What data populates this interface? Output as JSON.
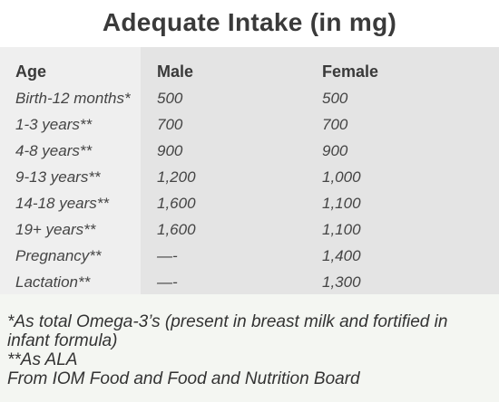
{
  "title": "Adequate Intake (in mg)",
  "table": {
    "headers": {
      "age": "Age",
      "male": "Male",
      "female": "Female"
    },
    "rows": [
      {
        "age": "Birth-12 months*",
        "male": "500",
        "female": "500"
      },
      {
        "age": "1-3 years**",
        "male": "700",
        "female": "700"
      },
      {
        "age": "4-8 years**",
        "male": "900",
        "female": "900"
      },
      {
        "age": "9-13 years**",
        "male": "1,200",
        "female": "1,000"
      },
      {
        "age": "14-18 years**",
        "male": "1,600",
        "female": "1,100"
      },
      {
        "age": "19+ years**",
        "male": "1,600",
        "female": "1,100"
      },
      {
        "age": "Pregnancy**",
        "male": "—-",
        "female": "1,400"
      },
      {
        "age": "Lactation**",
        "male": "—-",
        "female": "1,300"
      }
    ]
  },
  "notes": [
    "*As total Omega-3’s (present in breast milk and fortified in infant formula)",
    "**As ALA",
    "From IOM Food and Food and Nutrition Board"
  ]
}
